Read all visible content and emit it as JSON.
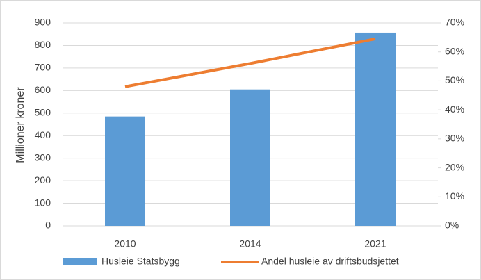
{
  "chart_data": {
    "type": "combo",
    "y_label": "Millioner kroner",
    "categories": [
      "2010",
      "2014",
      "2021"
    ],
    "series": [
      {
        "name": "Husleie Statsbygg",
        "type": "bar",
        "color": "#5b9bd5",
        "values": [
          485,
          605,
          857
        ]
      },
      {
        "name": "Andel husleie av driftsbudsjettet",
        "type": "line",
        "axis": "y2",
        "color": "#ed7d31",
        "values": [
          48,
          56,
          64.5
        ]
      }
    ],
    "ylim": [
      0,
      900
    ],
    "yticks": [
      0,
      100,
      200,
      300,
      400,
      500,
      600,
      700,
      800,
      900
    ],
    "y2lim": [
      0,
      70
    ],
    "y2ticks": [
      {
        "value": 0,
        "label": "0%"
      },
      {
        "value": 10,
        "label": "10%"
      },
      {
        "value": 20,
        "label": "20%"
      },
      {
        "value": 30,
        "label": "30%"
      },
      {
        "value": 40,
        "label": "40%"
      },
      {
        "value": 50,
        "label": "50%"
      },
      {
        "value": 60,
        "label": "60%"
      },
      {
        "value": 70,
        "label": "70%"
      }
    ],
    "grid": true,
    "legend": "bottom"
  }
}
